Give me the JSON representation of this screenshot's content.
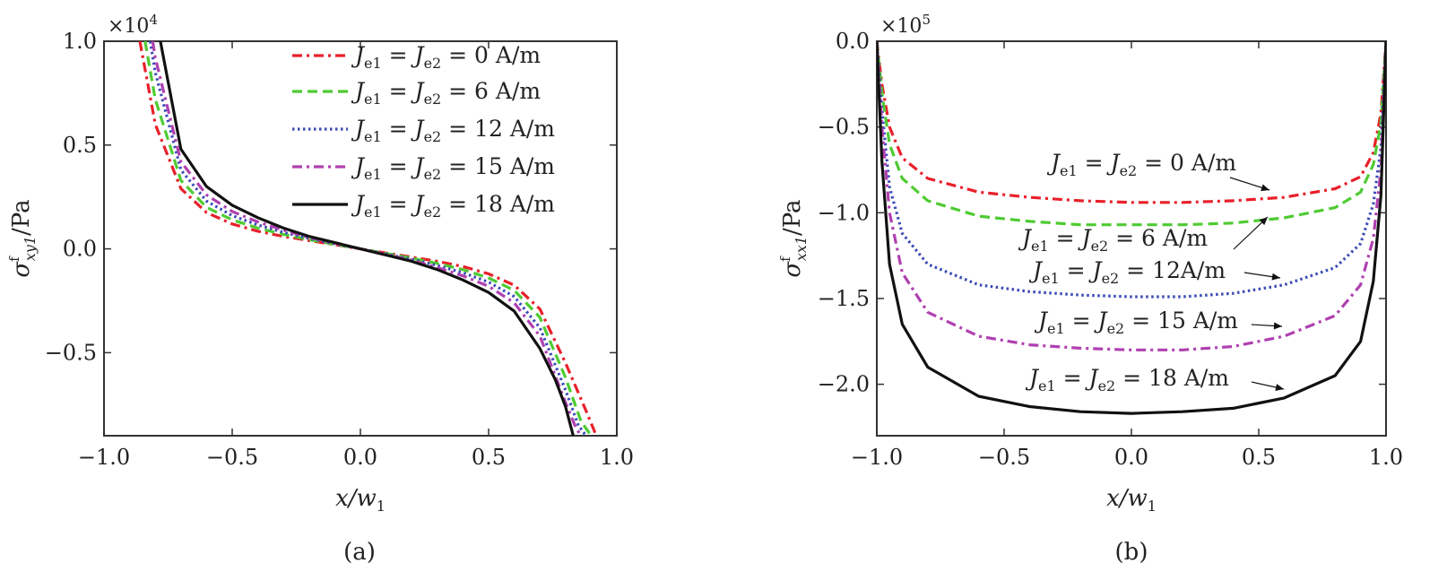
{
  "figure": {
    "panels": [
      "(a)",
      "(b)"
    ]
  },
  "legend_labels": [
    "Je1 = Je2 = 0 A/m",
    "Je1 = Je2 = 6 A/m",
    "Je1 = Je2 = 12 A/m",
    "Je1 = Je2 = 15 A/m",
    "Je1 = Je2 = 18 A/m"
  ],
  "annotations_b": [
    "Je1 = Je2 = 0 A/m",
    "Je1 = Je2 = 6 A/m",
    "Je1 = Je2 = 12A/m",
    "Je1 = Je2 = 15 A/m",
    "Je1 = Je2 = 18 A/m"
  ],
  "chart_data": [
    {
      "type": "line",
      "panel_label": "(a)",
      "xlabel": "x/w1",
      "ylabel": "σfxy1/Pa",
      "y_multiplier": "×10^4",
      "xlim": [
        -1.0,
        1.0
      ],
      "ylim": [
        -0.9,
        1.0
      ],
      "xticks": [
        "−1.0",
        "−0.5",
        "0.0",
        "0.5",
        "1.0"
      ],
      "yticks": [
        "1.0",
        "0.5",
        "0.0",
        "−0.5"
      ],
      "ytick_values": [
        1.0,
        0.5,
        0.0,
        -0.5
      ],
      "legend_position": "top-right",
      "series": [
        {
          "name": "Je1=Je2=0 A/m",
          "color": "#e8202a",
          "dash": "dashdot",
          "x": [
            -0.86,
            -0.8,
            -0.7,
            -0.6,
            -0.5,
            -0.4,
            -0.3,
            -0.2,
            -0.1,
            0,
            0.1,
            0.2,
            0.3,
            0.4,
            0.5,
            0.6,
            0.7,
            0.8,
            0.88,
            0.92
          ],
          "y": [
            1.0,
            0.6,
            0.29,
            0.175,
            0.12,
            0.085,
            0.06,
            0.04,
            0.02,
            0,
            -0.02,
            -0.04,
            -0.06,
            -0.085,
            -0.12,
            -0.175,
            -0.29,
            -0.55,
            -0.78,
            -0.9
          ]
        },
        {
          "name": "Je1=Je2=6 A/m",
          "color": "#4ecb32",
          "dash": "dashed",
          "x": [
            -0.84,
            -0.8,
            -0.7,
            -0.6,
            -0.5,
            -0.4,
            -0.3,
            -0.2,
            -0.1,
            0,
            0.1,
            0.2,
            0.3,
            0.4,
            0.5,
            0.6,
            0.7,
            0.8,
            0.86,
            0.9
          ],
          "y": [
            1.0,
            0.72,
            0.33,
            0.2,
            0.14,
            0.1,
            0.07,
            0.045,
            0.022,
            0,
            -0.022,
            -0.045,
            -0.07,
            -0.1,
            -0.14,
            -0.2,
            -0.33,
            -0.62,
            -0.83,
            -0.9
          ]
        },
        {
          "name": "Je1=Je2=12 A/m",
          "color": "#3a4ab6",
          "dash": "dotted",
          "x": [
            -0.82,
            -0.8,
            -0.7,
            -0.6,
            -0.5,
            -0.4,
            -0.3,
            -0.2,
            -0.1,
            0,
            0.1,
            0.2,
            0.3,
            0.4,
            0.5,
            0.6,
            0.7,
            0.8,
            0.85,
            0.88
          ],
          "y": [
            1.0,
            0.85,
            0.38,
            0.23,
            0.16,
            0.115,
            0.08,
            0.05,
            0.025,
            0,
            -0.025,
            -0.05,
            -0.08,
            -0.115,
            -0.16,
            -0.23,
            -0.38,
            -0.68,
            -0.85,
            -0.9
          ]
        },
        {
          "name": "Je1=Je2=15 A/m",
          "color": "#b040b0",
          "dash": "dashdot",
          "x": [
            -0.81,
            -0.8,
            -0.7,
            -0.6,
            -0.5,
            -0.4,
            -0.3,
            -0.2,
            -0.1,
            0,
            0.1,
            0.2,
            0.3,
            0.4,
            0.5,
            0.6,
            0.7,
            0.8,
            0.84,
            0.86
          ],
          "y": [
            1.0,
            0.92,
            0.42,
            0.26,
            0.18,
            0.13,
            0.09,
            0.055,
            0.028,
            0,
            -0.028,
            -0.055,
            -0.09,
            -0.13,
            -0.18,
            -0.26,
            -0.42,
            -0.74,
            -0.86,
            -0.9
          ]
        },
        {
          "name": "Je1=Je2=18 A/m",
          "color": "#111111",
          "dash": "solid",
          "x": [
            -0.78,
            -0.7,
            -0.6,
            -0.5,
            -0.4,
            -0.3,
            -0.2,
            -0.1,
            0,
            0.1,
            0.2,
            0.3,
            0.4,
            0.5,
            0.6,
            0.7,
            0.76,
            0.8,
            0.83
          ],
          "y": [
            1.0,
            0.48,
            0.3,
            0.21,
            0.15,
            0.1,
            0.06,
            0.03,
            0,
            -0.03,
            -0.06,
            -0.1,
            -0.15,
            -0.21,
            -0.3,
            -0.48,
            -0.63,
            -0.76,
            -0.9
          ]
        }
      ]
    },
    {
      "type": "line",
      "panel_label": "(b)",
      "xlabel": "x/w1",
      "ylabel": "σfxx1/Pa",
      "y_multiplier": "×10^5",
      "xlim": [
        -1.0,
        1.0
      ],
      "ylim": [
        -2.3,
        0.0
      ],
      "xticks": [
        "−1.0",
        "−0.5",
        "0.0",
        "0.5",
        "1.0"
      ],
      "yticks": [
        "0.0",
        "−0.5",
        "−1.0",
        "−1.5",
        "−2.0"
      ],
      "ytick_values": [
        0.0,
        -0.5,
        -1.0,
        -1.5,
        -2.0
      ],
      "series": [
        {
          "name": "Je1=Je2=0 A/m",
          "color": "#e8202a",
          "dash": "dashdot",
          "x": [
            -1,
            -0.98,
            -0.95,
            -0.9,
            -0.8,
            -0.6,
            -0.4,
            -0.2,
            0,
            0.2,
            0.4,
            0.6,
            0.8,
            0.9,
            0.95,
            0.98,
            1
          ],
          "y": [
            0,
            -0.25,
            -0.5,
            -0.68,
            -0.8,
            -0.88,
            -0.91,
            -0.93,
            -0.94,
            -0.94,
            -0.93,
            -0.91,
            -0.86,
            -0.79,
            -0.65,
            -0.42,
            0
          ]
        },
        {
          "name": "Je1=Je2=6 A/m",
          "color": "#4ecb32",
          "dash": "dashed",
          "x": [
            -1,
            -0.98,
            -0.95,
            -0.9,
            -0.8,
            -0.6,
            -0.4,
            -0.2,
            0,
            0.2,
            0.4,
            0.6,
            0.8,
            0.9,
            0.95,
            0.98,
            1
          ],
          "y": [
            0,
            -0.3,
            -0.6,
            -0.8,
            -0.93,
            -1.02,
            -1.05,
            -1.07,
            -1.07,
            -1.07,
            -1.06,
            -1.03,
            -0.97,
            -0.88,
            -0.72,
            -0.48,
            0
          ]
        },
        {
          "name": "Je1=Je2=12 A/m",
          "color": "#3a4ab6",
          "dash": "dotted",
          "x": [
            -1,
            -0.98,
            -0.95,
            -0.9,
            -0.8,
            -0.6,
            -0.4,
            -0.2,
            0,
            0.2,
            0.4,
            0.6,
            0.8,
            0.9,
            0.95,
            0.98,
            1
          ],
          "y": [
            0,
            -0.4,
            -0.85,
            -1.12,
            -1.3,
            -1.42,
            -1.46,
            -1.48,
            -1.49,
            -1.49,
            -1.47,
            -1.42,
            -1.32,
            -1.18,
            -0.95,
            -0.62,
            0
          ]
        },
        {
          "name": "Je1=Je2=15 A/m",
          "color": "#b040b0",
          "dash": "dashdot",
          "x": [
            -1,
            -0.98,
            -0.95,
            -0.9,
            -0.8,
            -0.6,
            -0.4,
            -0.2,
            0,
            0.2,
            0.4,
            0.6,
            0.8,
            0.9,
            0.95,
            0.98,
            1
          ],
          "y": [
            0,
            -0.5,
            -1.0,
            -1.35,
            -1.58,
            -1.72,
            -1.77,
            -1.79,
            -1.8,
            -1.8,
            -1.78,
            -1.72,
            -1.6,
            -1.42,
            -1.15,
            -0.75,
            0
          ]
        },
        {
          "name": "Je1=Je2=18 A/m",
          "color": "#111111",
          "dash": "solid",
          "x": [
            -1,
            -0.98,
            -0.95,
            -0.9,
            -0.8,
            -0.6,
            -0.4,
            -0.2,
            0,
            0.2,
            0.4,
            0.6,
            0.8,
            0.9,
            0.95,
            0.98,
            1
          ],
          "y": [
            0,
            -0.7,
            -1.3,
            -1.65,
            -1.9,
            -2.07,
            -2.13,
            -2.16,
            -2.17,
            -2.16,
            -2.14,
            -2.08,
            -1.95,
            -1.75,
            -1.4,
            -0.9,
            0
          ]
        }
      ]
    }
  ]
}
